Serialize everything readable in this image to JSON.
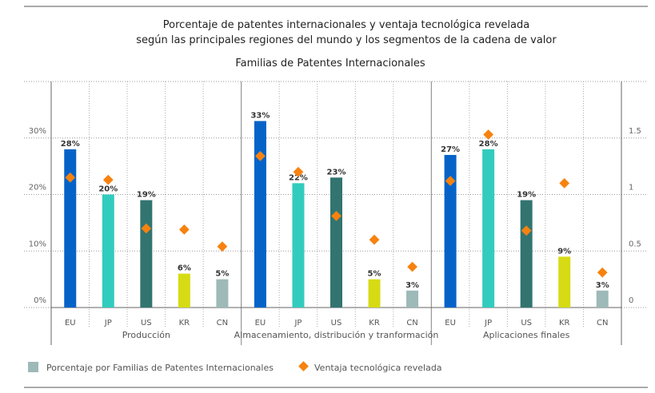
{
  "chart_data": {
    "type": "bar",
    "title": [
      "Porcentaje de patentes internacionales y ventaja tecnológica revelada",
      "según las principales regiones del mundo y los  segmentos de la cadena de valor"
    ],
    "subtitle": "Familias de Patentes Internacionales",
    "groups": [
      "Producción",
      "Almacenamiento, distribución y tranformación",
      "Aplicaciones finales"
    ],
    "categories": [
      "EU",
      "JP",
      "US",
      "KR",
      "CN"
    ],
    "colors": {
      "EU": "#0563C8",
      "JP": "#31CCBE",
      "US": "#327470",
      "KR": "#D6DB14",
      "CN": "#9DB9B8",
      "diamond": "#F7820F"
    },
    "series": [
      {
        "name": "Porcentaje por Familias de Patentes Internacionales",
        "axis": "left",
        "values": [
          [
            28,
            20,
            19,
            6,
            5
          ],
          [
            33,
            22,
            23,
            5,
            3
          ],
          [
            27,
            28,
            19,
            9,
            3
          ]
        ],
        "labels": [
          [
            "28%",
            "20%",
            "19%",
            "6%",
            "5%"
          ],
          [
            "33%",
            "22%",
            "23%",
            "5%",
            "3%"
          ],
          [
            "27%",
            "28%",
            "19%",
            "9%",
            "3%"
          ]
        ]
      },
      {
        "name": "Ventaja tecnológica revelada",
        "axis": "right",
        "values": [
          [
            1.15,
            1.13,
            0.7,
            0.69,
            0.54
          ],
          [
            1.34,
            1.2,
            0.81,
            0.6,
            0.36
          ],
          [
            1.12,
            1.53,
            0.68,
            1.1,
            0.31
          ]
        ]
      }
    ],
    "left_axis": {
      "ylim": [
        0,
        40
      ],
      "ticks": [
        0,
        10,
        20,
        30
      ],
      "tick_labels": [
        "0%",
        "10%",
        "20%",
        "30%"
      ]
    },
    "right_axis": {
      "ylim": [
        0,
        2
      ],
      "ticks": [
        0,
        0.5,
        1,
        1.5
      ],
      "tick_labels": [
        "0",
        "0.5",
        "1",
        "1.5"
      ]
    },
    "legend": {
      "placement": "bottom-left",
      "items": [
        "Porcentaje por Familias de Patentes Internacionales",
        "Ventaja tecnológica revelada"
      ]
    },
    "grid": true
  }
}
